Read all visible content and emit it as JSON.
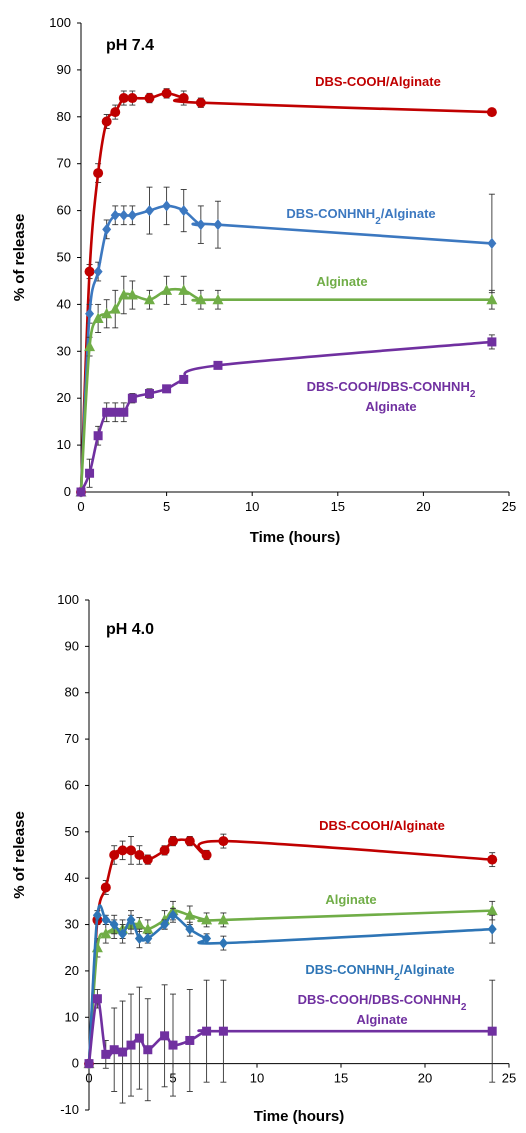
{
  "chart_data": [
    {
      "type": "line",
      "title": "pH 7.4",
      "xlabel": "Time (hours)",
      "ylabel": "% of release",
      "xlim": [
        0,
        25
      ],
      "ylim": [
        0,
        100
      ],
      "x_ticks": [
        0,
        5,
        10,
        15,
        20,
        25
      ],
      "y_ticks": [
        0,
        10,
        20,
        30,
        40,
        50,
        60,
        70,
        80,
        90,
        100
      ],
      "grid": false,
      "series": [
        {
          "name": "DBS-COOH/Alginate",
          "label_lines": [
            "DBS-COOH/Alginate"
          ],
          "color": "#C00000",
          "marker": "circle",
          "x": [
            0,
            0.5,
            1,
            1.5,
            2,
            2.5,
            3,
            4,
            5,
            6,
            7,
            24
          ],
          "y": [
            0,
            47,
            68,
            79,
            81,
            84,
            84,
            84,
            85,
            84,
            83,
            81
          ],
          "err": [
            0,
            1.5,
            2,
            1.5,
            1.5,
            1.5,
            1.5,
            1,
            1,
            1.5,
            1,
            0.5
          ]
        },
        {
          "name": "DBS-CONHNH2/Alginate",
          "label_lines": [
            "DBS-CONHNH2/Alginate"
          ],
          "color": "#3C78C0",
          "marker": "diamond",
          "x": [
            0,
            0.5,
            1,
            1.5,
            2,
            2.5,
            3,
            4,
            5,
            6,
            7,
            8,
            24
          ],
          "y": [
            0,
            38,
            47,
            56,
            59,
            59,
            59,
            60,
            61,
            60,
            57,
            57,
            53
          ],
          "err": [
            0,
            2,
            2,
            2,
            2,
            2,
            2,
            5,
            4,
            4.5,
            4,
            5,
            10.5
          ]
        },
        {
          "name": "Alginate",
          "label_lines": [
            "Alginate"
          ],
          "color": "#70AD47",
          "marker": "triangle",
          "x": [
            0,
            0.5,
            1,
            1.5,
            2,
            2.5,
            3,
            4,
            5,
            6,
            7,
            8,
            24
          ],
          "y": [
            0,
            31,
            37,
            38,
            39,
            42,
            42,
            41,
            43,
            43,
            41,
            41,
            41
          ],
          "err": [
            0,
            2,
            3,
            3,
            4,
            4,
            3,
            2,
            3,
            3,
            2,
            2,
            2
          ]
        },
        {
          "name": "DBS-COOH/DBS-CONHNH2 Alginate",
          "label_lines": [
            "DBS-COOH/DBS-CONHNH2",
            "Alginate"
          ],
          "color": "#7030A0",
          "marker": "square",
          "x": [
            0,
            0.5,
            1,
            1.5,
            2,
            2.5,
            3,
            4,
            5,
            6,
            8,
            24
          ],
          "y": [
            0,
            4,
            12,
            17,
            17,
            17,
            20,
            21,
            22,
            24,
            27,
            32
          ],
          "err": [
            0,
            3,
            2,
            2,
            2,
            2,
            1,
            1,
            0.5,
            0.5,
            0.5,
            1.5
          ]
        }
      ]
    },
    {
      "type": "line",
      "title": "pH 4.0",
      "xlabel": "Time (hours)",
      "ylabel": "% of release",
      "xlim": [
        0,
        25
      ],
      "ylim": [
        -10,
        100
      ],
      "x_ticks": [
        0,
        5,
        10,
        15,
        20,
        25
      ],
      "y_ticks": [
        -10,
        0,
        10,
        20,
        30,
        40,
        50,
        60,
        70,
        80,
        90,
        100
      ],
      "grid": false,
      "series": [
        {
          "name": "DBS-COOH/Alginate",
          "label_lines": [
            "DBS-COOH/Alginate"
          ],
          "color": "#C00000",
          "marker": "circle",
          "x": [
            0,
            0.5,
            1,
            1.5,
            2,
            2.5,
            3,
            3.5,
            4.5,
            5,
            6,
            7,
            8,
            24
          ],
          "y": [
            0,
            31,
            38,
            45,
            46,
            46,
            45,
            44,
            46,
            48,
            48,
            45,
            48,
            44
          ],
          "err": [
            0,
            1,
            1.5,
            2,
            2,
            3,
            2,
            1,
            1,
            1,
            1,
            1,
            1.5,
            1.5
          ]
        },
        {
          "name": "Alginate",
          "label_lines": [
            "Alginate"
          ],
          "color": "#70AD47",
          "marker": "triangle",
          "x": [
            0,
            0.5,
            1,
            1.5,
            2,
            2.5,
            3,
            3.5,
            4.5,
            5,
            6,
            7,
            8,
            24
          ],
          "y": [
            0,
            25,
            28,
            29,
            29,
            30,
            30,
            29,
            31,
            33,
            32,
            31,
            31,
            33
          ],
          "err": [
            0,
            2,
            2,
            2,
            2,
            2,
            1.5,
            2,
            2,
            2,
            2,
            1.5,
            1.5,
            2
          ]
        },
        {
          "name": "DBS-CONHNH2/Alginate",
          "label_lines": [
            "DBS-CONHNH2/Alginate"
          ],
          "color": "#2E75B6",
          "marker": "diamond",
          "x": [
            0,
            0.5,
            1,
            1.5,
            2,
            2.5,
            3,
            3.5,
            4.5,
            5,
            6,
            7,
            8,
            24
          ],
          "y": [
            0,
            32,
            31,
            30,
            28,
            31,
            27,
            27,
            30,
            32,
            29,
            27,
            26,
            29
          ],
          "err": [
            0,
            1,
            1,
            2,
            2,
            2,
            2,
            1,
            1,
            1.5,
            1.5,
            1,
            1.5,
            3
          ]
        },
        {
          "name": "DBS-COOH/DBS-CONHNH2 Alginate",
          "label_lines": [
            "DBS-COOH/DBS-CONHNH2",
            "Alginate"
          ],
          "color": "#7030A0",
          "marker": "square",
          "x": [
            0,
            0.5,
            1,
            1.5,
            2,
            2.5,
            3,
            3.5,
            4.5,
            5,
            6,
            7,
            8,
            24
          ],
          "y": [
            0,
            14,
            2,
            3,
            2.5,
            4,
            5.5,
            3,
            6,
            4,
            5,
            7,
            7,
            7
          ],
          "err": [
            0,
            2,
            3,
            9,
            11,
            11,
            11,
            11,
            11,
            11,
            11,
            11,
            11,
            11
          ]
        }
      ]
    }
  ]
}
